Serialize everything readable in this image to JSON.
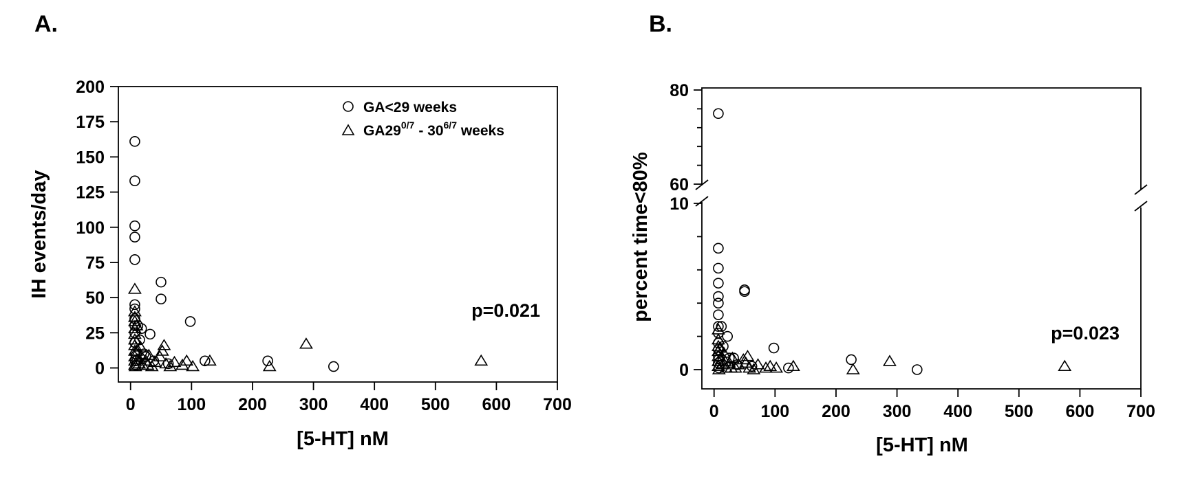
{
  "chart_data": [
    {
      "panel": "A.",
      "type": "scatter",
      "xlabel": "[5-HT] nM",
      "ylabel": "IH events/day",
      "xlim": [
        -20,
        700
      ],
      "ylim": [
        -10,
        200
      ],
      "xticks": [
        "0",
        "100",
        "200",
        "300",
        "400",
        "500",
        "600",
        "700"
      ],
      "yticks": [
        "0",
        "25",
        "50",
        "75",
        "100",
        "125",
        "150",
        "175",
        "200"
      ],
      "legend": {
        "position": "top-right",
        "entries": [
          {
            "marker": "circle",
            "label": "GA<29 weeks"
          },
          {
            "marker": "triangle",
            "label_main": "GA29",
            "sup1": "0/7",
            "label_mid": "- 30",
            "sup2": "6/7",
            "label_end": " weeks"
          }
        ]
      },
      "annotation": "p=0.021",
      "series": [
        {
          "marker": "circle",
          "points": [
            [
              7,
              161
            ],
            [
              7,
              133
            ],
            [
              7,
              101
            ],
            [
              7,
              93
            ],
            [
              7,
              77
            ],
            [
              7,
              45
            ],
            [
              7,
              42
            ],
            [
              7,
              35
            ],
            [
              7,
              30
            ],
            [
              7,
              25
            ],
            [
              7,
              18
            ],
            [
              8,
              10
            ],
            [
              8,
              5
            ],
            [
              9,
              2
            ],
            [
              12,
              30
            ],
            [
              15,
              20
            ],
            [
              18,
              28
            ],
            [
              22,
              10
            ],
            [
              25,
              8
            ],
            [
              32,
              24
            ],
            [
              38,
              5
            ],
            [
              50,
              61
            ],
            [
              50,
              49
            ],
            [
              62,
              3
            ],
            [
              98,
              33
            ],
            [
              122,
              5
            ],
            [
              225,
              5
            ],
            [
              333,
              1
            ]
          ]
        },
        {
          "marker": "triangle",
          "points": [
            [
              7,
              56
            ],
            [
              7,
              40
            ],
            [
              7,
              36
            ],
            [
              7,
              33
            ],
            [
              7,
              28
            ],
            [
              7,
              24
            ],
            [
              7,
              20
            ],
            [
              7,
              16
            ],
            [
              7,
              12
            ],
            [
              7,
              8
            ],
            [
              7,
              5
            ],
            [
              7,
              2
            ],
            [
              8,
              1
            ],
            [
              10,
              30
            ],
            [
              10,
              12
            ],
            [
              12,
              6
            ],
            [
              14,
              3
            ],
            [
              16,
              15
            ],
            [
              18,
              8
            ],
            [
              20,
              2
            ],
            [
              25,
              5
            ],
            [
              28,
              2
            ],
            [
              30,
              9
            ],
            [
              35,
              1
            ],
            [
              40,
              4
            ],
            [
              48,
              8
            ],
            [
              52,
              12
            ],
            [
              55,
              16
            ],
            [
              58,
              3
            ],
            [
              65,
              1
            ],
            [
              72,
              4
            ],
            [
              85,
              2
            ],
            [
              92,
              5
            ],
            [
              102,
              1
            ],
            [
              130,
              5
            ],
            [
              228,
              1
            ],
            [
              288,
              17
            ],
            [
              575,
              5
            ]
          ]
        }
      ]
    },
    {
      "panel": "B.",
      "type": "scatter",
      "xlabel": "[5-HT] nM",
      "ylabel": "percent time<80%",
      "xlim": [
        -20,
        700
      ],
      "ylim_lower": [
        -1,
        10
      ],
      "ylim_upper": [
        60,
        80
      ],
      "y_axis_break": true,
      "xticks": [
        "0",
        "100",
        "200",
        "300",
        "400",
        "500",
        "600",
        "700"
      ],
      "yticks_lower": [
        "0",
        "10"
      ],
      "yticks_upper": [
        "60",
        "80"
      ],
      "annotation": "p=0.023",
      "series": [
        {
          "marker": "circle",
          "points": [
            [
              7,
              75
            ],
            [
              7,
              7.3
            ],
            [
              7,
              6.1
            ],
            [
              7,
              5.2
            ],
            [
              7,
              4.4
            ],
            [
              7,
              4
            ],
            [
              7,
              3.3
            ],
            [
              7,
              2.6
            ],
            [
              7,
              2.2
            ],
            [
              7,
              1.6
            ],
            [
              7,
              1.2
            ],
            [
              7,
              0.8
            ],
            [
              7,
              0.4
            ],
            [
              8,
              0.1
            ],
            [
              12,
              2.6
            ],
            [
              15,
              1.4
            ],
            [
              22,
              2
            ],
            [
              25,
              0.7
            ],
            [
              32,
              0.7
            ],
            [
              38,
              0.3
            ],
            [
              50,
              4.8
            ],
            [
              50,
              4.7
            ],
            [
              62,
              0.2
            ],
            [
              98,
              1.3
            ],
            [
              122,
              0.1
            ],
            [
              225,
              0.6
            ],
            [
              333,
              0
            ]
          ]
        },
        {
          "marker": "triangle",
          "points": [
            [
              7,
              2.4
            ],
            [
              7,
              1.8
            ],
            [
              7,
              1.4
            ],
            [
              7,
              1.1
            ],
            [
              7,
              0.8
            ],
            [
              7,
              0.5
            ],
            [
              7,
              0.2
            ],
            [
              8,
              0
            ],
            [
              10,
              1.3
            ],
            [
              12,
              0.6
            ],
            [
              14,
              0.3
            ],
            [
              16,
              1
            ],
            [
              18,
              0.5
            ],
            [
              20,
              0.1
            ],
            [
              25,
              0.4
            ],
            [
              28,
              0.1
            ],
            [
              30,
              0.7
            ],
            [
              35,
              0.1
            ],
            [
              40,
              0.3
            ],
            [
              48,
              0.6
            ],
            [
              52,
              0.4
            ],
            [
              55,
              0.8
            ],
            [
              58,
              0.1
            ],
            [
              65,
              0
            ],
            [
              72,
              0.3
            ],
            [
              85,
              0.1
            ],
            [
              92,
              0.2
            ],
            [
              102,
              0.1
            ],
            [
              130,
              0.2
            ],
            [
              228,
              0
            ],
            [
              288,
              0.5
            ],
            [
              575,
              0.2
            ]
          ]
        }
      ]
    }
  ]
}
